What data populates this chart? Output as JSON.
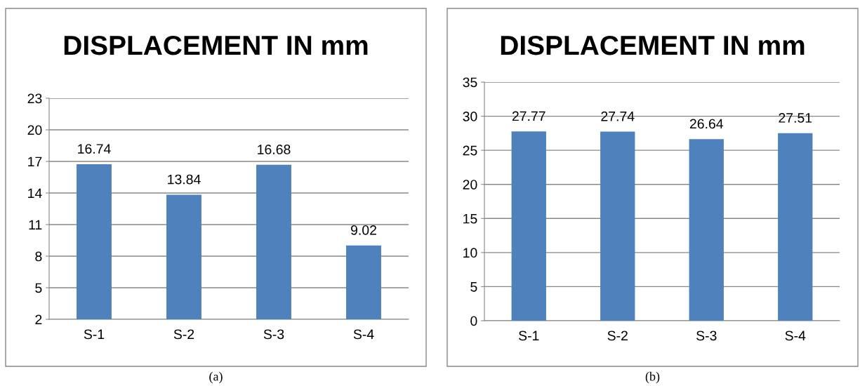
{
  "chart_data": [
    {
      "type": "bar",
      "title": "DISPLACEMENT IN mm",
      "categories": [
        "S-1",
        "S-2",
        "S-3",
        "S-4"
      ],
      "values": [
        16.74,
        13.84,
        16.68,
        9.02
      ],
      "color": "#4f81bd",
      "ylim": [
        2,
        23
      ],
      "yticks": [
        2,
        5,
        8,
        11,
        14,
        17,
        20,
        23
      ],
      "grid": "y",
      "data_labels": true,
      "annotations": [
        "(a)"
      ]
    },
    {
      "type": "bar",
      "title": "DISPLACEMENT IN mm",
      "categories": [
        "S-1",
        "S-2",
        "S-3",
        "S-4"
      ],
      "values": [
        27.77,
        27.74,
        26.64,
        27.51
      ],
      "color": "#4f81bd",
      "ylim": [
        0,
        35
      ],
      "yticks": [
        0,
        5,
        10,
        15,
        20,
        25,
        30,
        35
      ],
      "grid": "y",
      "data_labels": true,
      "annotations": [
        "(b)"
      ]
    }
  ]
}
